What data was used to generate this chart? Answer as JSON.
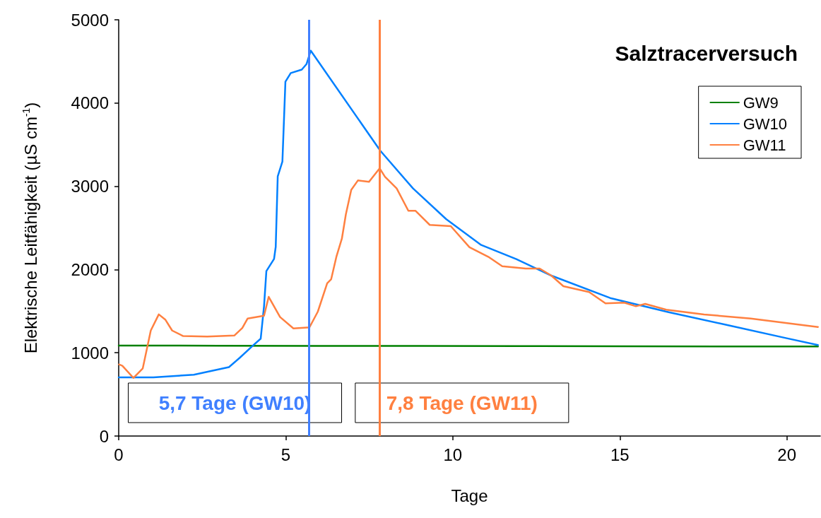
{
  "chart_data": {
    "type": "line",
    "title": "Salztracerversuch",
    "xlabel": "Tage",
    "ylabel": "Elektrische Leitfähigkeit (µS cm$^{-1}$)",
    "xlim": [
      0,
      21
    ],
    "xticks": [
      0,
      5,
      10,
      15,
      20
    ],
    "ylim": [
      0,
      5000
    ],
    "yticks": [
      0,
      1000,
      2000,
      3000,
      4000,
      5000
    ],
    "grid": false,
    "legend": "top right",
    "marker": "none",
    "line_style": "solid",
    "series": [
      {
        "name": "GW9",
        "color": "#008000",
        "x": [
          0,
          3,
          6,
          9,
          12,
          15,
          18,
          20.93
        ],
        "values": [
          1087,
          1085,
          1083,
          1082,
          1080,
          1078,
          1076,
          1075
        ]
      },
      {
        "name": "GW10",
        "color": "#0080ff",
        "x": [
          0,
          1.04,
          2.25,
          3.3,
          3.63,
          4.02,
          4.25,
          4.35,
          4.42,
          4.65,
          4.7,
          4.76,
          4.9,
          4.99,
          5.15,
          5.48,
          5.62,
          5.75,
          7.83,
          8.81,
          9.8,
          10.85,
          11.9,
          12.95,
          14.71,
          16.46,
          18.22,
          19.97,
          20.93
        ],
        "values": [
          705,
          705,
          737,
          828,
          942,
          1087,
          1169,
          1559,
          1981,
          2127,
          2273,
          3118,
          3297,
          4256,
          4360,
          4402,
          4467,
          4629,
          3427,
          2974,
          2606,
          2295,
          2125,
          1927,
          1658,
          1488,
          1333,
          1177,
          1093
        ]
      },
      {
        "name": "GW11",
        "color": "#ff8040",
        "x": [
          0.01,
          0.11,
          0.44,
          0.72,
          0.96,
          1.2,
          1.4,
          1.6,
          1.93,
          2.65,
          3.46,
          3.7,
          3.86,
          4.35,
          4.49,
          4.83,
          5.23,
          5.71,
          5.96,
          6.24,
          6.36,
          6.52,
          6.68,
          6.8,
          6.96,
          7.16,
          7.49,
          7.81,
          7.97,
          8.32,
          8.67,
          8.88,
          9.31,
          9.94,
          10.5,
          11.06,
          11.48,
          12.18,
          12.6,
          12.95,
          13.31,
          14.08,
          14.57,
          15.13,
          15.48,
          15.76,
          16.39,
          17.52,
          18.92,
          20.93
        ],
        "values": [
          860,
          844,
          698,
          812,
          1267,
          1461,
          1396,
          1267,
          1201,
          1194,
          1207,
          1298,
          1412,
          1445,
          1672,
          1429,
          1292,
          1305,
          1494,
          1834,
          1884,
          2160,
          2371,
          2663,
          2956,
          3070,
          3053,
          3216,
          3115,
          2974,
          2706,
          2706,
          2536,
          2521,
          2267,
          2154,
          2040,
          2012,
          2012,
          1927,
          1800,
          1729,
          1593,
          1602,
          1559,
          1587,
          1517,
          1460,
          1412,
          1310
        ]
      }
    ],
    "ref_lines": [
      {
        "axis": "x",
        "value": 5.7,
        "label": "5,7 Tage (GW10)",
        "color": "#4080ff"
      },
      {
        "axis": "x",
        "value": 7.8,
        "label": "7,8 Tage (GW11)",
        "color": "#ff8040"
      }
    ]
  }
}
